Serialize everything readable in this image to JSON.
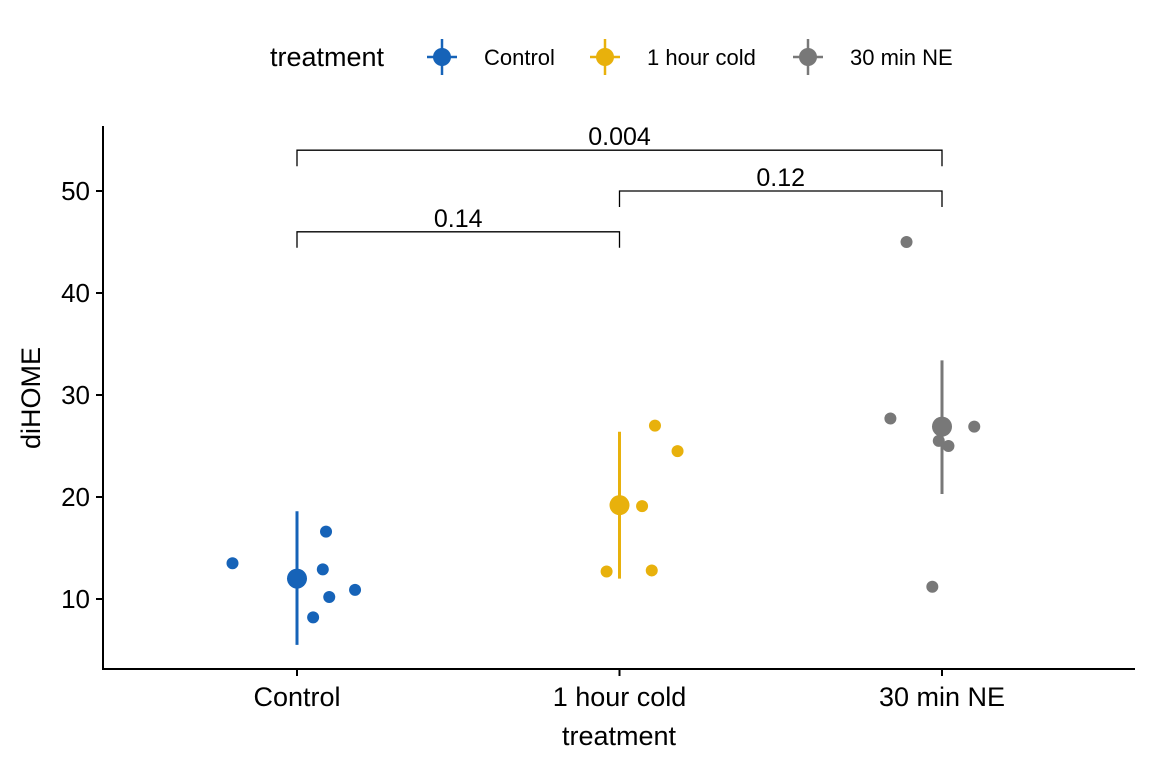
{
  "chart_data": {
    "type": "scatter",
    "title": "",
    "xlabel": "treatment",
    "ylabel": "diHOME",
    "categories": [
      "Control",
      "1 hour cold",
      "30 min NE"
    ],
    "ylim": [
      3,
      56
    ],
    "yticks": [
      10,
      20,
      30,
      40,
      50
    ],
    "grid": false,
    "legend": {
      "title": "treatment",
      "position": "top",
      "entries": [
        "Control",
        "1 hour cold",
        "30 min NE"
      ]
    },
    "series": [
      {
        "name": "Control",
        "color": "#1663b8",
        "points": [
          {
            "x": -0.2,
            "y": 13.5
          },
          {
            "x": 0.09,
            "y": 16.6
          },
          {
            "x": 0.08,
            "y": 12.9
          },
          {
            "x": 0.18,
            "y": 10.9
          },
          {
            "x": 0.1,
            "y": 10.2
          },
          {
            "x": 0.05,
            "y": 8.2
          }
        ],
        "mean": 12.0,
        "range": [
          5.5,
          18.6
        ]
      },
      {
        "name": "1 hour cold",
        "color": "#e8b10c",
        "points": [
          {
            "x": 0.11,
            "y": 27.0
          },
          {
            "x": 0.18,
            "y": 24.5
          },
          {
            "x": 0.07,
            "y": 19.1
          },
          {
            "x": -0.04,
            "y": 12.7
          },
          {
            "x": 0.1,
            "y": 12.8
          }
        ],
        "mean": 19.2,
        "range": [
          12.0,
          26.4
        ]
      },
      {
        "name": "30 min NE",
        "color": "#787878",
        "points": [
          {
            "x": -0.11,
            "y": 45.0
          },
          {
            "x": -0.16,
            "y": 27.7
          },
          {
            "x": 0.1,
            "y": 26.9
          },
          {
            "x": -0.01,
            "y": 25.5
          },
          {
            "x": 0.02,
            "y": 25.0
          },
          {
            "x": -0.03,
            "y": 11.2
          }
        ],
        "mean": 26.9,
        "range": [
          20.3,
          33.4
        ]
      }
    ],
    "comparisons": [
      {
        "from": "Control",
        "to": "1 hour cold",
        "label": "0.14",
        "y": 46
      },
      {
        "from": "1 hour cold",
        "to": "30 min NE",
        "label": "0.12",
        "y": 50
      },
      {
        "from": "Control",
        "to": "30 min NE",
        "label": "0.004",
        "y": 54
      }
    ]
  }
}
